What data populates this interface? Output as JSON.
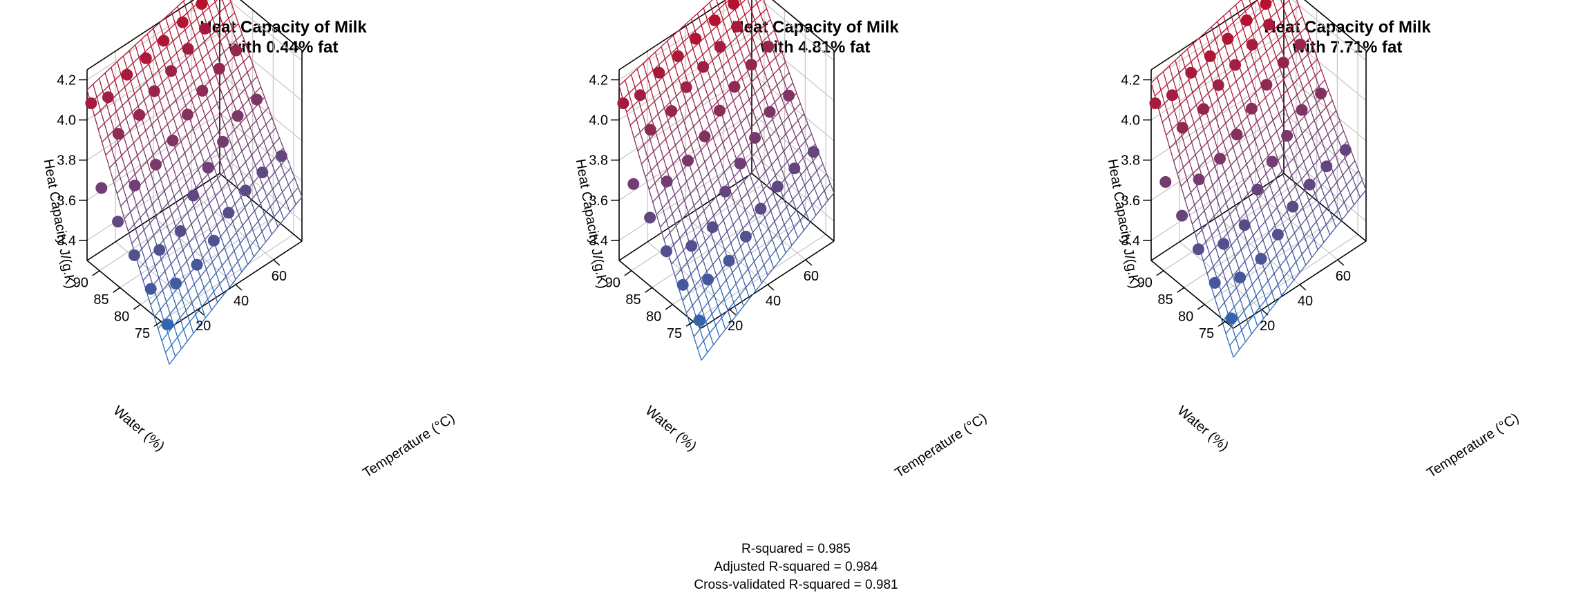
{
  "chart_data": [
    {
      "type": "surface3d",
      "title_lines": [
        "Heat Capacity of Milk",
        "with 0.44% fat"
      ],
      "fat_percent": 0.44,
      "xlabel": "Temperature (°C)",
      "ylabel": "Water (%)",
      "zlabel": "Heat Capacity J/(g.K)",
      "x_ticks": [
        "20",
        "40",
        "60"
      ],
      "y_ticks": [
        "75",
        "80",
        "85",
        "90"
      ],
      "z_ticks": [
        "3.4",
        "3.6",
        "3.8",
        "4.0",
        "4.2"
      ],
      "xlim": [
        5,
        75
      ],
      "ylim": [
        73,
        93
      ],
      "zlim": [
        3.3,
        4.25
      ],
      "grid": true,
      "color_low": "#2a6ab8",
      "color_high": "#b5122e",
      "surface_offset": 0.0,
      "points": [
        {
          "temperature": 5,
          "water": 73.5,
          "heat_capacity": 3.31
        },
        {
          "temperature": 5,
          "water": 77.5,
          "heat_capacity": 3.42
        },
        {
          "temperature": 5,
          "water": 81.5,
          "heat_capacity": 3.52
        },
        {
          "temperature": 5,
          "water": 85.5,
          "heat_capacity": 3.62
        },
        {
          "temperature": 5,
          "water": 89.5,
          "heat_capacity": 3.72
        },
        {
          "temperature": 5,
          "water": 92.0,
          "heat_capacity": 4.1
        },
        {
          "temperature": 15,
          "water": 76.0,
          "heat_capacity": 3.41
        },
        {
          "temperature": 15,
          "water": 80.0,
          "heat_capacity": 3.51
        },
        {
          "temperature": 15,
          "water": 86.0,
          "heat_capacity": 3.73
        },
        {
          "temperature": 15,
          "water": 90.0,
          "heat_capacity": 3.92
        },
        {
          "temperature": 15,
          "water": 92.5,
          "heat_capacity": 4.06
        },
        {
          "temperature": 25,
          "water": 75.5,
          "heat_capacity": 3.45
        },
        {
          "temperature": 25,
          "water": 79.5,
          "heat_capacity": 3.55
        },
        {
          "temperature": 25,
          "water": 85.5,
          "heat_capacity": 3.78
        },
        {
          "temperature": 25,
          "water": 89.5,
          "heat_capacity": 3.96
        },
        {
          "temperature": 25,
          "water": 92.5,
          "heat_capacity": 4.11
        },
        {
          "temperature": 35,
          "water": 76.0,
          "heat_capacity": 3.5
        },
        {
          "temperature": 35,
          "water": 81.0,
          "heat_capacity": 3.64
        },
        {
          "temperature": 35,
          "water": 86.0,
          "heat_capacity": 3.83
        },
        {
          "temperature": 35,
          "water": 90.5,
          "heat_capacity": 4.0
        },
        {
          "temperature": 35,
          "water": 92.5,
          "heat_capacity": 4.13
        },
        {
          "temperature": 45,
          "water": 77.0,
          "heat_capacity": 3.56
        },
        {
          "temperature": 45,
          "water": 82.0,
          "heat_capacity": 3.7
        },
        {
          "temperature": 45,
          "water": 87.0,
          "heat_capacity": 3.88
        },
        {
          "temperature": 45,
          "water": 91.0,
          "heat_capacity": 4.03
        },
        {
          "temperature": 45,
          "water": 92.8,
          "heat_capacity": 4.15
        },
        {
          "temperature": 55,
          "water": 77.5,
          "heat_capacity": 3.6
        },
        {
          "temperature": 55,
          "water": 83.0,
          "heat_capacity": 3.75
        },
        {
          "temperature": 55,
          "water": 88.0,
          "heat_capacity": 3.92
        },
        {
          "temperature": 55,
          "water": 91.5,
          "heat_capacity": 4.07
        },
        {
          "temperature": 55,
          "water": 92.8,
          "heat_capacity": 4.18
        },
        {
          "temperature": 65,
          "water": 78.0,
          "heat_capacity": 3.62
        },
        {
          "temperature": 65,
          "water": 84.0,
          "heat_capacity": 3.8
        },
        {
          "temperature": 65,
          "water": 88.5,
          "heat_capacity": 3.96
        },
        {
          "temperature": 65,
          "water": 92.0,
          "heat_capacity": 4.1
        },
        {
          "temperature": 65,
          "water": 92.8,
          "heat_capacity": 4.21
        },
        {
          "temperature": 75,
          "water": 78.0,
          "heat_capacity": 3.64
        },
        {
          "temperature": 75,
          "water": 84.0,
          "heat_capacity": 3.82
        },
        {
          "temperature": 75,
          "water": 89.0,
          "heat_capacity": 3.98
        },
        {
          "temperature": 75,
          "water": 92.5,
          "heat_capacity": 4.2
        }
      ]
    },
    {
      "type": "surface3d",
      "title_lines": [
        "Heat Capacity of Milk",
        "with 4.81% fat"
      ],
      "fat_percent": 4.81,
      "xlabel": "Temperature (°C)",
      "ylabel": "Water (%)",
      "zlabel": "Heat Capacity J/(g.K)",
      "x_ticks": [
        "20",
        "40",
        "60"
      ],
      "y_ticks": [
        "75",
        "80",
        "85",
        "90"
      ],
      "z_ticks": [
        "3.4",
        "3.6",
        "3.8",
        "4.0",
        "4.2"
      ],
      "xlim": [
        5,
        75
      ],
      "ylim": [
        73,
        93
      ],
      "zlim": [
        3.3,
        4.25
      ],
      "grid": true,
      "color_low": "#2a6ab8",
      "color_high": "#b5122e",
      "surface_offset": 0.02,
      "points": [
        {
          "temperature": 5,
          "water": 73.5,
          "heat_capacity": 3.33
        },
        {
          "temperature": 5,
          "water": 77.5,
          "heat_capacity": 3.44
        },
        {
          "temperature": 5,
          "water": 81.5,
          "heat_capacity": 3.54
        },
        {
          "temperature": 5,
          "water": 85.5,
          "heat_capacity": 3.64
        },
        {
          "temperature": 5,
          "water": 89.5,
          "heat_capacity": 3.74
        },
        {
          "temperature": 5,
          "water": 92.0,
          "heat_capacity": 4.1
        },
        {
          "temperature": 15,
          "water": 76.0,
          "heat_capacity": 3.43
        },
        {
          "temperature": 15,
          "water": 80.0,
          "heat_capacity": 3.53
        },
        {
          "temperature": 15,
          "water": 86.0,
          "heat_capacity": 3.75
        },
        {
          "temperature": 15,
          "water": 90.0,
          "heat_capacity": 3.94
        },
        {
          "temperature": 15,
          "water": 92.5,
          "heat_capacity": 4.07
        },
        {
          "temperature": 25,
          "water": 75.5,
          "heat_capacity": 3.47
        },
        {
          "temperature": 25,
          "water": 79.5,
          "heat_capacity": 3.57
        },
        {
          "temperature": 25,
          "water": 85.5,
          "heat_capacity": 3.8
        },
        {
          "temperature": 25,
          "water": 89.5,
          "heat_capacity": 3.98
        },
        {
          "temperature": 25,
          "water": 92.5,
          "heat_capacity": 4.12
        },
        {
          "temperature": 35,
          "water": 76.0,
          "heat_capacity": 3.52
        },
        {
          "temperature": 35,
          "water": 81.0,
          "heat_capacity": 3.66
        },
        {
          "temperature": 35,
          "water": 86.0,
          "heat_capacity": 3.85
        },
        {
          "temperature": 35,
          "water": 90.5,
          "heat_capacity": 4.02
        },
        {
          "temperature": 35,
          "water": 92.5,
          "heat_capacity": 4.14
        },
        {
          "temperature": 45,
          "water": 77.0,
          "heat_capacity": 3.58
        },
        {
          "temperature": 45,
          "water": 82.0,
          "heat_capacity": 3.72
        },
        {
          "temperature": 45,
          "water": 87.0,
          "heat_capacity": 3.9
        },
        {
          "temperature": 45,
          "water": 91.0,
          "heat_capacity": 4.05
        },
        {
          "temperature": 45,
          "water": 92.8,
          "heat_capacity": 4.16
        },
        {
          "temperature": 55,
          "water": 77.5,
          "heat_capacity": 3.62
        },
        {
          "temperature": 55,
          "water": 83.0,
          "heat_capacity": 3.77
        },
        {
          "temperature": 55,
          "water": 88.0,
          "heat_capacity": 3.94
        },
        {
          "temperature": 55,
          "water": 91.5,
          "heat_capacity": 4.08
        },
        {
          "temperature": 55,
          "water": 92.8,
          "heat_capacity": 4.19
        },
        {
          "temperature": 65,
          "water": 78.0,
          "heat_capacity": 3.64
        },
        {
          "temperature": 65,
          "water": 84.0,
          "heat_capacity": 3.82
        },
        {
          "temperature": 65,
          "water": 88.5,
          "heat_capacity": 3.98
        },
        {
          "temperature": 65,
          "water": 92.0,
          "heat_capacity": 4.11
        },
        {
          "temperature": 65,
          "water": 92.8,
          "heat_capacity": 4.21
        },
        {
          "temperature": 75,
          "water": 78.0,
          "heat_capacity": 3.66
        },
        {
          "temperature": 75,
          "water": 84.0,
          "heat_capacity": 3.84
        },
        {
          "temperature": 75,
          "water": 89.0,
          "heat_capacity": 4.0
        },
        {
          "temperature": 75,
          "water": 92.5,
          "heat_capacity": 4.21
        }
      ]
    },
    {
      "type": "surface3d",
      "title_lines": [
        "Heat Capacity of Milk",
        "with 7.71% fat"
      ],
      "fat_percent": 7.71,
      "xlabel": "Temperature (°C)",
      "ylabel": "Water (%)",
      "zlabel": "Heat Capacity J/(g.K)",
      "x_ticks": [
        "20",
        "40",
        "60"
      ],
      "y_ticks": [
        "75",
        "80",
        "85",
        "90"
      ],
      "z_ticks": [
        "3.4",
        "3.6",
        "3.8",
        "4.0",
        "4.2"
      ],
      "xlim": [
        5,
        75
      ],
      "ylim": [
        73,
        93
      ],
      "zlim": [
        3.3,
        4.25
      ],
      "grid": true,
      "color_low": "#2a6ab8",
      "color_high": "#b5122e",
      "surface_offset": 0.035,
      "points": [
        {
          "temperature": 5,
          "water": 73.5,
          "heat_capacity": 3.34
        },
        {
          "temperature": 5,
          "water": 77.5,
          "heat_capacity": 3.45
        },
        {
          "temperature": 5,
          "water": 81.5,
          "heat_capacity": 3.55
        },
        {
          "temperature": 5,
          "water": 85.5,
          "heat_capacity": 3.65
        },
        {
          "temperature": 5,
          "water": 89.5,
          "heat_capacity": 3.75
        },
        {
          "temperature": 5,
          "water": 92.0,
          "heat_capacity": 4.1
        },
        {
          "temperature": 15,
          "water": 76.0,
          "heat_capacity": 3.44
        },
        {
          "temperature": 15,
          "water": 80.0,
          "heat_capacity": 3.54
        },
        {
          "temperature": 15,
          "water": 86.0,
          "heat_capacity": 3.76
        },
        {
          "temperature": 15,
          "water": 90.0,
          "heat_capacity": 3.95
        },
        {
          "temperature": 15,
          "water": 92.5,
          "heat_capacity": 4.07
        },
        {
          "temperature": 25,
          "water": 75.5,
          "heat_capacity": 3.48
        },
        {
          "temperature": 25,
          "water": 79.5,
          "heat_capacity": 3.58
        },
        {
          "temperature": 25,
          "water": 85.5,
          "heat_capacity": 3.81
        },
        {
          "temperature": 25,
          "water": 89.5,
          "heat_capacity": 3.99
        },
        {
          "temperature": 25,
          "water": 92.5,
          "heat_capacity": 4.12
        },
        {
          "temperature": 35,
          "water": 76.0,
          "heat_capacity": 3.53
        },
        {
          "temperature": 35,
          "water": 81.0,
          "heat_capacity": 3.67
        },
        {
          "temperature": 35,
          "water": 86.0,
          "heat_capacity": 3.86
        },
        {
          "temperature": 35,
          "water": 90.5,
          "heat_capacity": 4.03
        },
        {
          "temperature": 35,
          "water": 92.5,
          "heat_capacity": 4.14
        },
        {
          "temperature": 45,
          "water": 77.0,
          "heat_capacity": 3.59
        },
        {
          "temperature": 45,
          "water": 82.0,
          "heat_capacity": 3.73
        },
        {
          "temperature": 45,
          "water": 87.0,
          "heat_capacity": 3.91
        },
        {
          "temperature": 45,
          "water": 91.0,
          "heat_capacity": 4.06
        },
        {
          "temperature": 45,
          "water": 92.8,
          "heat_capacity": 4.16
        },
        {
          "temperature": 55,
          "water": 77.5,
          "heat_capacity": 3.63
        },
        {
          "temperature": 55,
          "water": 83.0,
          "heat_capacity": 3.78
        },
        {
          "temperature": 55,
          "water": 88.0,
          "heat_capacity": 3.95
        },
        {
          "temperature": 55,
          "water": 91.5,
          "heat_capacity": 4.09
        },
        {
          "temperature": 55,
          "water": 92.8,
          "heat_capacity": 4.19
        },
        {
          "temperature": 65,
          "water": 78.0,
          "heat_capacity": 3.65
        },
        {
          "temperature": 65,
          "water": 84.0,
          "heat_capacity": 3.83
        },
        {
          "temperature": 65,
          "water": 88.5,
          "heat_capacity": 3.99
        },
        {
          "temperature": 65,
          "water": 92.0,
          "heat_capacity": 4.12
        },
        {
          "temperature": 65,
          "water": 92.8,
          "heat_capacity": 4.21
        },
        {
          "temperature": 75,
          "water": 78.0,
          "heat_capacity": 3.67
        },
        {
          "temperature": 75,
          "water": 84.0,
          "heat_capacity": 3.85
        },
        {
          "temperature": 75,
          "water": 89.0,
          "heat_capacity": 4.01
        },
        {
          "temperature": 75,
          "water": 92.5,
          "heat_capacity": 4.21
        }
      ]
    }
  ],
  "stats": {
    "r_squared": "R-squared = 0.985",
    "adjusted_r_squared": "Adjusted R-squared = 0.984",
    "cv_r_squared": "Cross-validated R-squared = 0.981"
  }
}
